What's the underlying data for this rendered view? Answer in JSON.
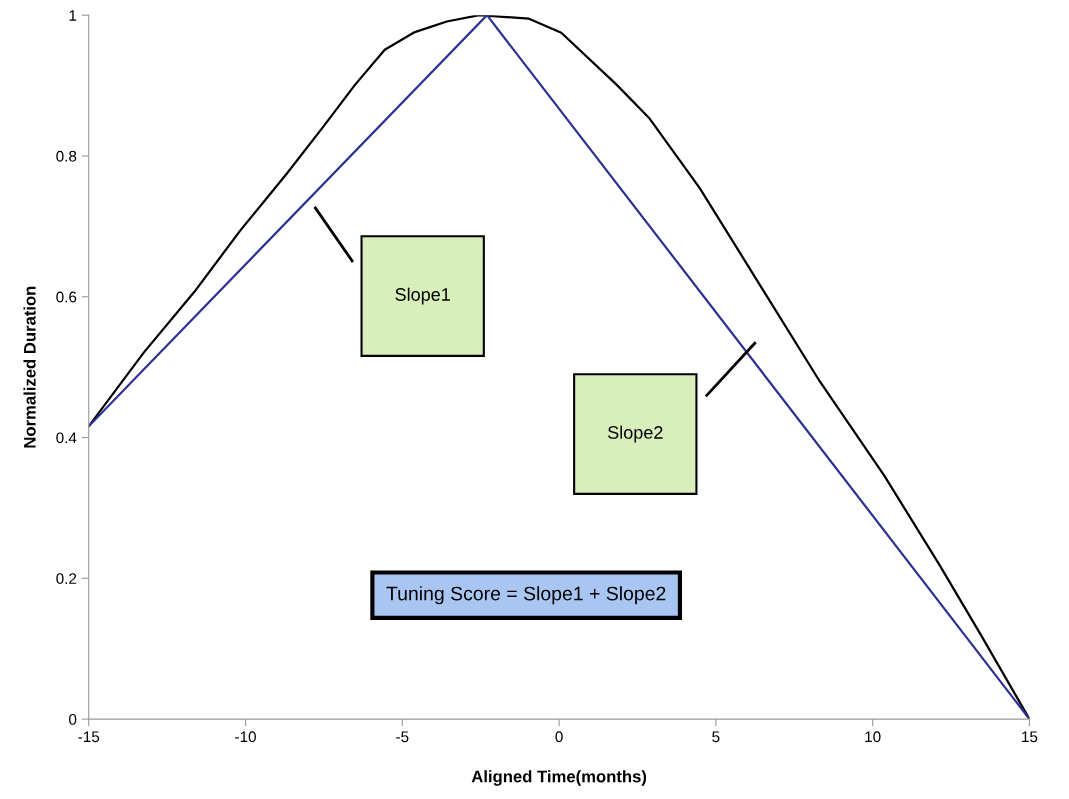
{
  "chart_data": {
    "type": "line",
    "xlabel": "Aligned Time(months)",
    "ylabel": "Normalized Duration",
    "series": [
      {
        "color": "#000000",
        "x": [
          -15,
          -13.24,
          -11.63,
          -10.17,
          -8.7,
          -7.53,
          -6.51,
          -5.56,
          -4.6,
          -3.58,
          -2.55,
          -0.96,
          0.07,
          1.84,
          2.87,
          4.49,
          6.54,
          8.31,
          10.37,
          12.13,
          13.46,
          15
        ],
        "values": [
          0.416,
          0.521,
          0.607,
          0.694,
          0.774,
          0.841,
          0.901,
          0.951,
          0.976,
          0.991,
          1.0,
          0.995,
          0.975,
          0.901,
          0.854,
          0.754,
          0.607,
          0.48,
          0.346,
          0.219,
          0.119,
          0
        ]
      },
      {
        "color": "#2e3192",
        "x": [
          -15,
          -2.3,
          15
        ],
        "values": [
          0.416,
          1.0,
          0
        ]
      }
    ],
    "xlim": [
      -15,
      15
    ],
    "xticks": [
      -15,
      -10,
      -5,
      0,
      5,
      10,
      15
    ],
    "ylim": [
      0,
      1
    ],
    "yticks": [
      0,
      0.2,
      0.4,
      0.6,
      0.8,
      1
    ],
    "grid": false,
    "legend": false,
    "annotations": [
      "Slope1",
      "Slope2",
      "Tuning Score = Slope1 + Slope2"
    ]
  }
}
